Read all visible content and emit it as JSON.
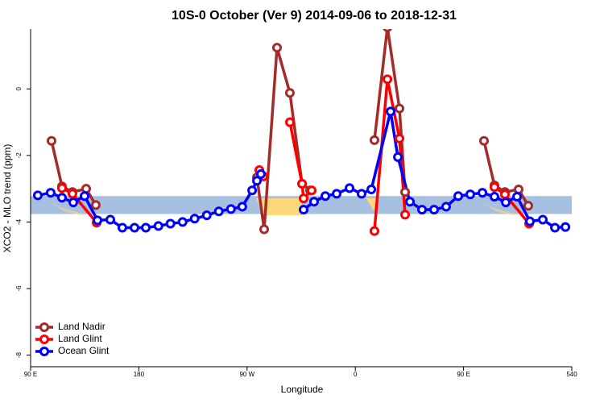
{
  "chart_data": {
    "type": "line",
    "title": "10S-0 October (Ver 9)   2014-09-06 to 2018-12-31",
    "x_label": "Longitude",
    "y_label": "XCO2 - MLO trend (ppm)",
    "xlim": [
      90,
      540
    ],
    "ylim": [
      -8.35,
      1.8
    ],
    "xticks": [
      {
        "value": 90,
        "label": "90 E"
      },
      180,
      {
        "value": 270,
        "label": "90 W"
      },
      {
        "value": 360,
        "label": "0"
      },
      {
        "value": 450,
        "label": "90 E"
      },
      540
    ],
    "yticks": [
      0,
      -2,
      -4,
      -6,
      -8
    ],
    "band": [
      -3.76,
      -3.22
    ],
    "band_color": "#a7bfe0",
    "legend": "bottom-left",
    "series": [
      {
        "name": "Land Nadir",
        "color": "#a52a2a",
        "x": [
          107.4,
          116.1,
          124.8,
          136.2,
          144.2,
          null,
          278.2,
          284.2,
          294.9,
          305.6,
          315.7,
          322.4,
          null,
          375.9,
          386.7,
          396.7,
          401.4,
          null,
          467,
          475.7,
          484.4,
          495.8,
          503.8
        ],
        "values": [
          -1.56,
          -2.93,
          -3.1,
          -3.0,
          -3.49,
          null,
          -2.66,
          -4.22,
          1.24,
          -0.12,
          -2.85,
          -3.05,
          null,
          -1.54,
          1.85,
          -0.59,
          -3.1,
          null,
          -1.56,
          -2.9,
          -3.1,
          -3.02,
          -3.51
        ]
      },
      {
        "name": "Land Glint",
        "color": "#ff0000",
        "x": [
          116.1,
          124.8,
          144.9,
          null,
          280.2,
          283.5,
          null,
          305.6,
          315.7,
          317,
          323.7,
          null,
          375.9,
          386.7,
          396.7,
          401.4,
          null,
          475.7,
          484.4,
          504.5
        ],
        "values": [
          -2.98,
          -3.15,
          -4.02,
          null,
          -2.44,
          -2.63,
          null,
          -1.0,
          -2.85,
          -3.29,
          -3.05,
          null,
          -4.27,
          0.29,
          -1.49,
          -3.78,
          null,
          -2.95,
          -3.17,
          -4.05
        ]
      },
      {
        "name": "Ocean Glint",
        "color": "#0000ff",
        "x": [
          96,
          106.7,
          116.1,
          125.5,
          134.9,
          145.6,
          156.3,
          166.3,
          176.4,
          185.8,
          196.3,
          206.3,
          216.4,
          226.4,
          236.5,
          246.5,
          256.6,
          266,
          274.2,
          278.2,
          281.5,
          null,
          317,
          325.7,
          335.1,
          344.5,
          355.2,
          365.2,
          373.3,
          389.3,
          395.4,
          405.4,
          415.5,
          425.5,
          435.5,
          445.6,
          455.6,
          465.7,
          475.7,
          485.1,
          494.5,
          505.2,
          515.9,
          526,
          534.7
        ],
        "values": [
          -3.2,
          -3.12,
          -3.27,
          -3.41,
          -3.22,
          -3.95,
          -3.93,
          -4.17,
          -4.17,
          -4.17,
          -4.12,
          -4.05,
          -4.0,
          -3.9,
          -3.8,
          -3.68,
          -3.61,
          -3.54,
          -3.05,
          -2.76,
          -2.56,
          null,
          -3.63,
          -3.39,
          -3.22,
          -3.15,
          -2.98,
          -3.15,
          -3.02,
          -0.68,
          -2.05,
          -3.39,
          -3.63,
          -3.63,
          -3.54,
          -3.22,
          -3.17,
          -3.12,
          -3.24,
          -3.41,
          -3.24,
          -3.98,
          -3.93,
          -4.17,
          -4.15
        ]
      }
    ]
  }
}
